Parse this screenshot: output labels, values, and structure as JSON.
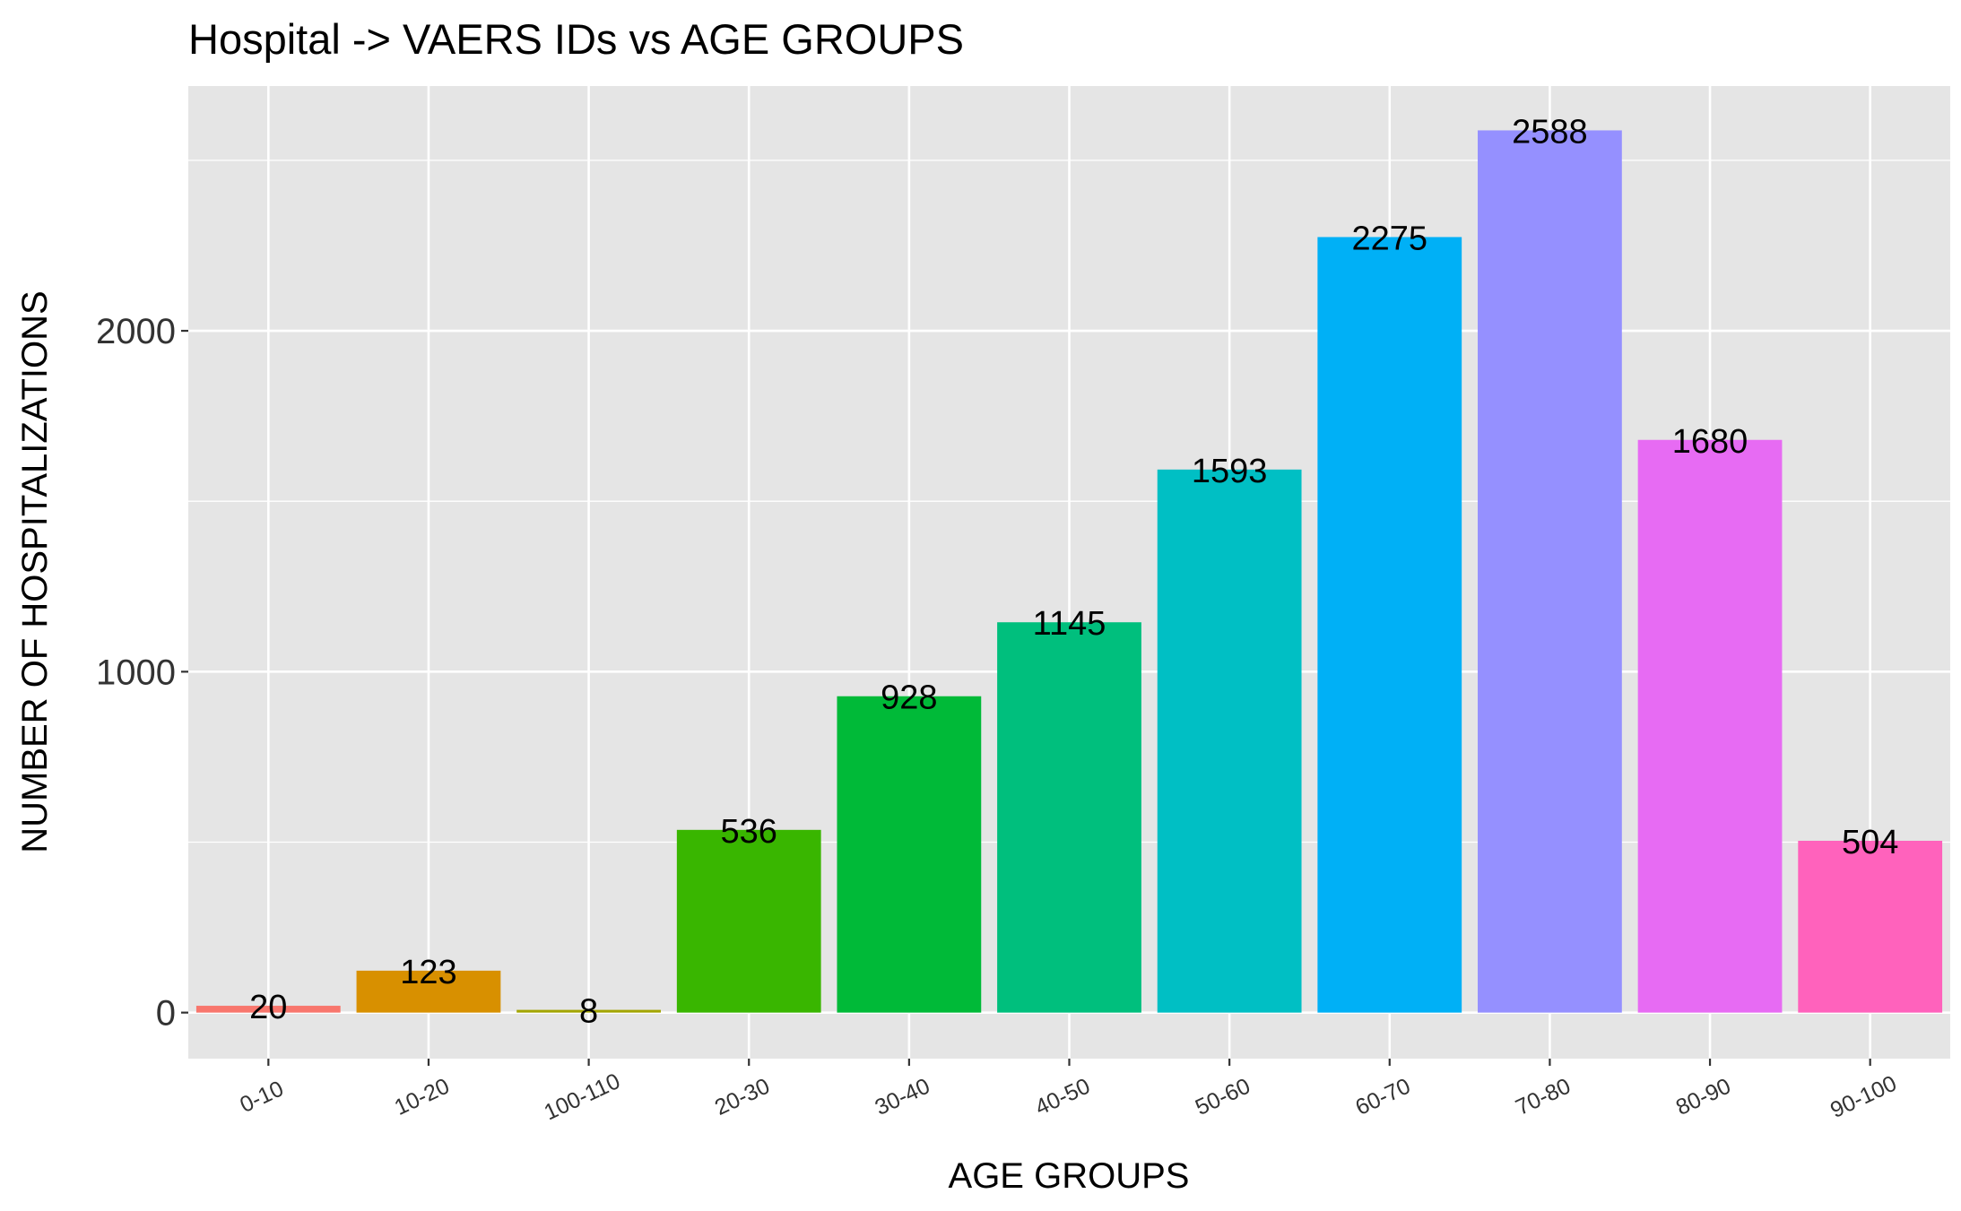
{
  "chart_data": {
    "type": "bar",
    "title": "Hospital -> VAERS IDs vs AGE GROUPS",
    "xlabel": "AGE GROUPS",
    "ylabel": "NUMBER OF HOSPITALIZATIONS",
    "categories": [
      "0-10",
      "10-20",
      "100-110",
      "20-30",
      "30-40",
      "40-50",
      "50-60",
      "60-70",
      "70-80",
      "80-90",
      "90-100"
    ],
    "values": [
      20,
      123,
      8,
      536,
      928,
      1145,
      1593,
      2275,
      2588,
      1680,
      504
    ],
    "colors": [
      "#F8766D",
      "#D89000",
      "#A3A500",
      "#39B600",
      "#00BA38",
      "#00BF7D",
      "#00BFC4",
      "#00B0F6",
      "#9590FF",
      "#E76BF3",
      "#FF62BC"
    ],
    "yticks": [
      0,
      1000,
      2000
    ],
    "ylim": [
      -135,
      2718
    ],
    "panel_background": "#E5E5E5",
    "grid": true,
    "legend": "none"
  }
}
